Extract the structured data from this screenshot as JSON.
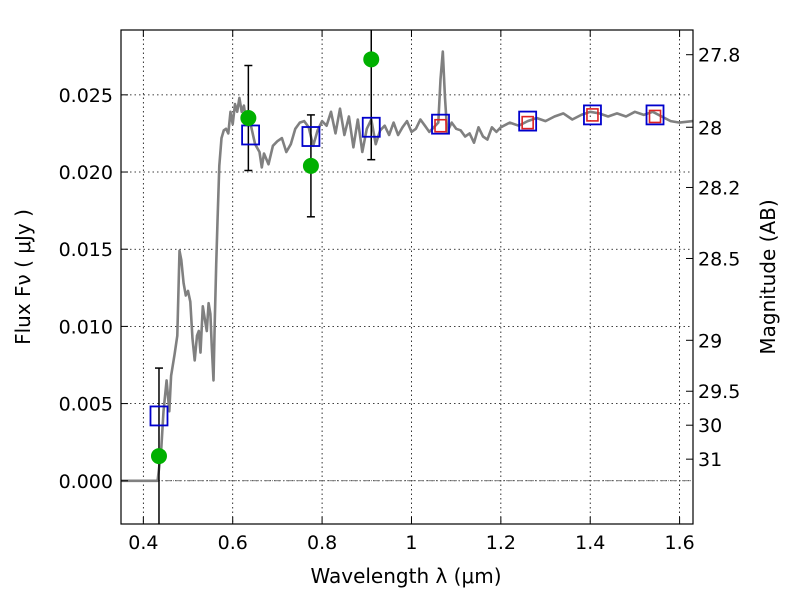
{
  "chart_data": {
    "type": "scatter",
    "title": "",
    "xlabel": "Wavelength  λ (μm)",
    "ylabel": "Flux  Fν  ( μJy )",
    "ylabel_right": "Magnitude (AB)",
    "xlim": [
      0.35,
      1.63
    ],
    "ylim": [
      -0.0028,
      0.0292
    ],
    "grid": true,
    "x_ticks": [
      0.4,
      0.6,
      0.8,
      1.0,
      1.2,
      1.4,
      1.6
    ],
    "x_tick_labels": [
      "0.4",
      "0.6",
      "0.8",
      "1",
      "1.2",
      "1.4",
      "1.6"
    ],
    "y_ticks": [
      0.0,
      0.005,
      0.01,
      0.015,
      0.02,
      0.025
    ],
    "y_tick_labels": [
      "0.000",
      "0.005",
      "0.010",
      "0.015",
      "0.020",
      "0.025"
    ],
    "right_ticks": [
      {
        "label": "27.8",
        "flux": 0.0276
      },
      {
        "label": "28",
        "flux": 0.0229
      },
      {
        "label": "28.2",
        "flux": 0.019
      },
      {
        "label": "28.5",
        "flux": 0.0144
      },
      {
        "label": "29",
        "flux": 0.0091
      },
      {
        "label": "29.5",
        "flux": 0.0058
      },
      {
        "label": "30",
        "flux": 0.0036
      },
      {
        "label": "31",
        "flux": 0.0014
      }
    ],
    "model_spectrum": {
      "color": "#808080",
      "points": [
        [
          0.35,
          0.0
        ],
        [
          0.42,
          0.0
        ],
        [
          0.432,
          0.0
        ],
        [
          0.44,
          0.002
        ],
        [
          0.445,
          0.0045
        ],
        [
          0.452,
          0.0065
        ],
        [
          0.458,
          0.0045
        ],
        [
          0.462,
          0.0068
        ],
        [
          0.47,
          0.0082
        ],
        [
          0.476,
          0.0094
        ],
        [
          0.481,
          0.0149
        ],
        [
          0.485,
          0.0143
        ],
        [
          0.49,
          0.0128
        ],
        [
          0.495,
          0.012
        ],
        [
          0.5,
          0.0123
        ],
        [
          0.505,
          0.0116
        ],
        [
          0.51,
          0.0092
        ],
        [
          0.515,
          0.0078
        ],
        [
          0.52,
          0.0094
        ],
        [
          0.524,
          0.0097
        ],
        [
          0.528,
          0.0083
        ],
        [
          0.533,
          0.0113
        ],
        [
          0.538,
          0.0104
        ],
        [
          0.542,
          0.0097
        ],
        [
          0.546,
          0.0115
        ],
        [
          0.55,
          0.0108
        ],
        [
          0.553,
          0.0088
        ],
        [
          0.557,
          0.0065
        ],
        [
          0.56,
          0.0104
        ],
        [
          0.563,
          0.014
        ],
        [
          0.566,
          0.0168
        ],
        [
          0.57,
          0.0204
        ],
        [
          0.575,
          0.0222
        ],
        [
          0.58,
          0.0227
        ],
        [
          0.585,
          0.0228
        ],
        [
          0.59,
          0.0225
        ],
        [
          0.595,
          0.0239
        ],
        [
          0.6,
          0.0231
        ],
        [
          0.605,
          0.0244
        ],
        [
          0.61,
          0.0239
        ],
        [
          0.615,
          0.0248
        ],
        [
          0.62,
          0.0239
        ],
        [
          0.625,
          0.0243
        ],
        [
          0.63,
          0.0233
        ],
        [
          0.64,
          0.0231
        ],
        [
          0.65,
          0.0218
        ],
        [
          0.66,
          0.0213
        ],
        [
          0.665,
          0.0203
        ],
        [
          0.67,
          0.0212
        ],
        [
          0.68,
          0.0205
        ],
        [
          0.69,
          0.0217
        ],
        [
          0.7,
          0.022
        ],
        [
          0.71,
          0.0222
        ],
        [
          0.72,
          0.0213
        ],
        [
          0.73,
          0.0218
        ],
        [
          0.74,
          0.0228
        ],
        [
          0.75,
          0.0232
        ],
        [
          0.76,
          0.0233
        ],
        [
          0.77,
          0.0229
        ],
        [
          0.78,
          0.0217
        ],
        [
          0.79,
          0.0227
        ],
        [
          0.8,
          0.0233
        ],
        [
          0.81,
          0.023
        ],
        [
          0.82,
          0.0239
        ],
        [
          0.83,
          0.0225
        ],
        [
          0.84,
          0.0241
        ],
        [
          0.85,
          0.0224
        ],
        [
          0.86,
          0.0236
        ],
        [
          0.87,
          0.0216
        ],
        [
          0.88,
          0.0234
        ],
        [
          0.89,
          0.0213
        ],
        [
          0.9,
          0.0228
        ],
        [
          0.91,
          0.0234
        ],
        [
          0.92,
          0.0218
        ],
        [
          0.93,
          0.0227
        ],
        [
          0.94,
          0.023
        ],
        [
          0.95,
          0.0224
        ],
        [
          0.96,
          0.0232
        ],
        [
          0.97,
          0.0224
        ],
        [
          0.98,
          0.0229
        ],
        [
          0.99,
          0.0233
        ],
        [
          1.0,
          0.0226
        ],
        [
          1.01,
          0.0228
        ],
        [
          1.02,
          0.0234
        ],
        [
          1.03,
          0.023
        ],
        [
          1.04,
          0.0226
        ],
        [
          1.05,
          0.0229
        ],
        [
          1.06,
          0.0232
        ],
        [
          1.065,
          0.026
        ],
        [
          1.07,
          0.0278
        ],
        [
          1.075,
          0.0248
        ],
        [
          1.08,
          0.0226
        ],
        [
          1.09,
          0.0232
        ],
        [
          1.1,
          0.0228
        ],
        [
          1.11,
          0.0227
        ],
        [
          1.12,
          0.0223
        ],
        [
          1.13,
          0.0225
        ],
        [
          1.14,
          0.0219
        ],
        [
          1.15,
          0.0229
        ],
        [
          1.16,
          0.0223
        ],
        [
          1.17,
          0.0221
        ],
        [
          1.18,
          0.0229
        ],
        [
          1.19,
          0.0226
        ],
        [
          1.2,
          0.0229
        ],
        [
          1.22,
          0.0232
        ],
        [
          1.24,
          0.023
        ],
        [
          1.26,
          0.0233
        ],
        [
          1.28,
          0.0235
        ],
        [
          1.3,
          0.0233
        ],
        [
          1.32,
          0.0236
        ],
        [
          1.34,
          0.0238
        ],
        [
          1.36,
          0.0234
        ],
        [
          1.38,
          0.0237
        ],
        [
          1.4,
          0.0239
        ],
        [
          1.42,
          0.0238
        ],
        [
          1.44,
          0.0236
        ],
        [
          1.46,
          0.0238
        ],
        [
          1.48,
          0.0236
        ],
        [
          1.5,
          0.0239
        ],
        [
          1.52,
          0.0237
        ],
        [
          1.54,
          0.0239
        ],
        [
          1.56,
          0.0236
        ],
        [
          1.58,
          0.0233
        ],
        [
          1.6,
          0.0232
        ],
        [
          1.63,
          0.0233
        ]
      ]
    },
    "synthetic_photometry": {
      "marker": "square",
      "color": "#0000cc",
      "points": [
        [
          0.435,
          0.0042
        ],
        [
          0.64,
          0.0224
        ],
        [
          0.775,
          0.0223
        ],
        [
          0.91,
          0.0229
        ],
        [
          1.065,
          0.0231
        ],
        [
          1.26,
          0.0233
        ],
        [
          1.405,
          0.0237
        ],
        [
          1.545,
          0.0237
        ]
      ]
    },
    "model_bands": {
      "marker": "square",
      "color": "#dd2222",
      "points": [
        [
          1.065,
          0.023
        ],
        [
          1.26,
          0.0232
        ],
        [
          1.405,
          0.0237
        ],
        [
          1.545,
          0.0236
        ]
      ]
    },
    "observed_photometry": {
      "marker": "circle",
      "color": "#00b000",
      "points": [
        [
          0.435,
          0.0016,
          0.0057
        ],
        [
          0.635,
          0.0235,
          0.0034
        ],
        [
          0.775,
          0.0204,
          0.0033
        ],
        [
          0.91,
          0.0273,
          0.0065
        ]
      ]
    }
  }
}
